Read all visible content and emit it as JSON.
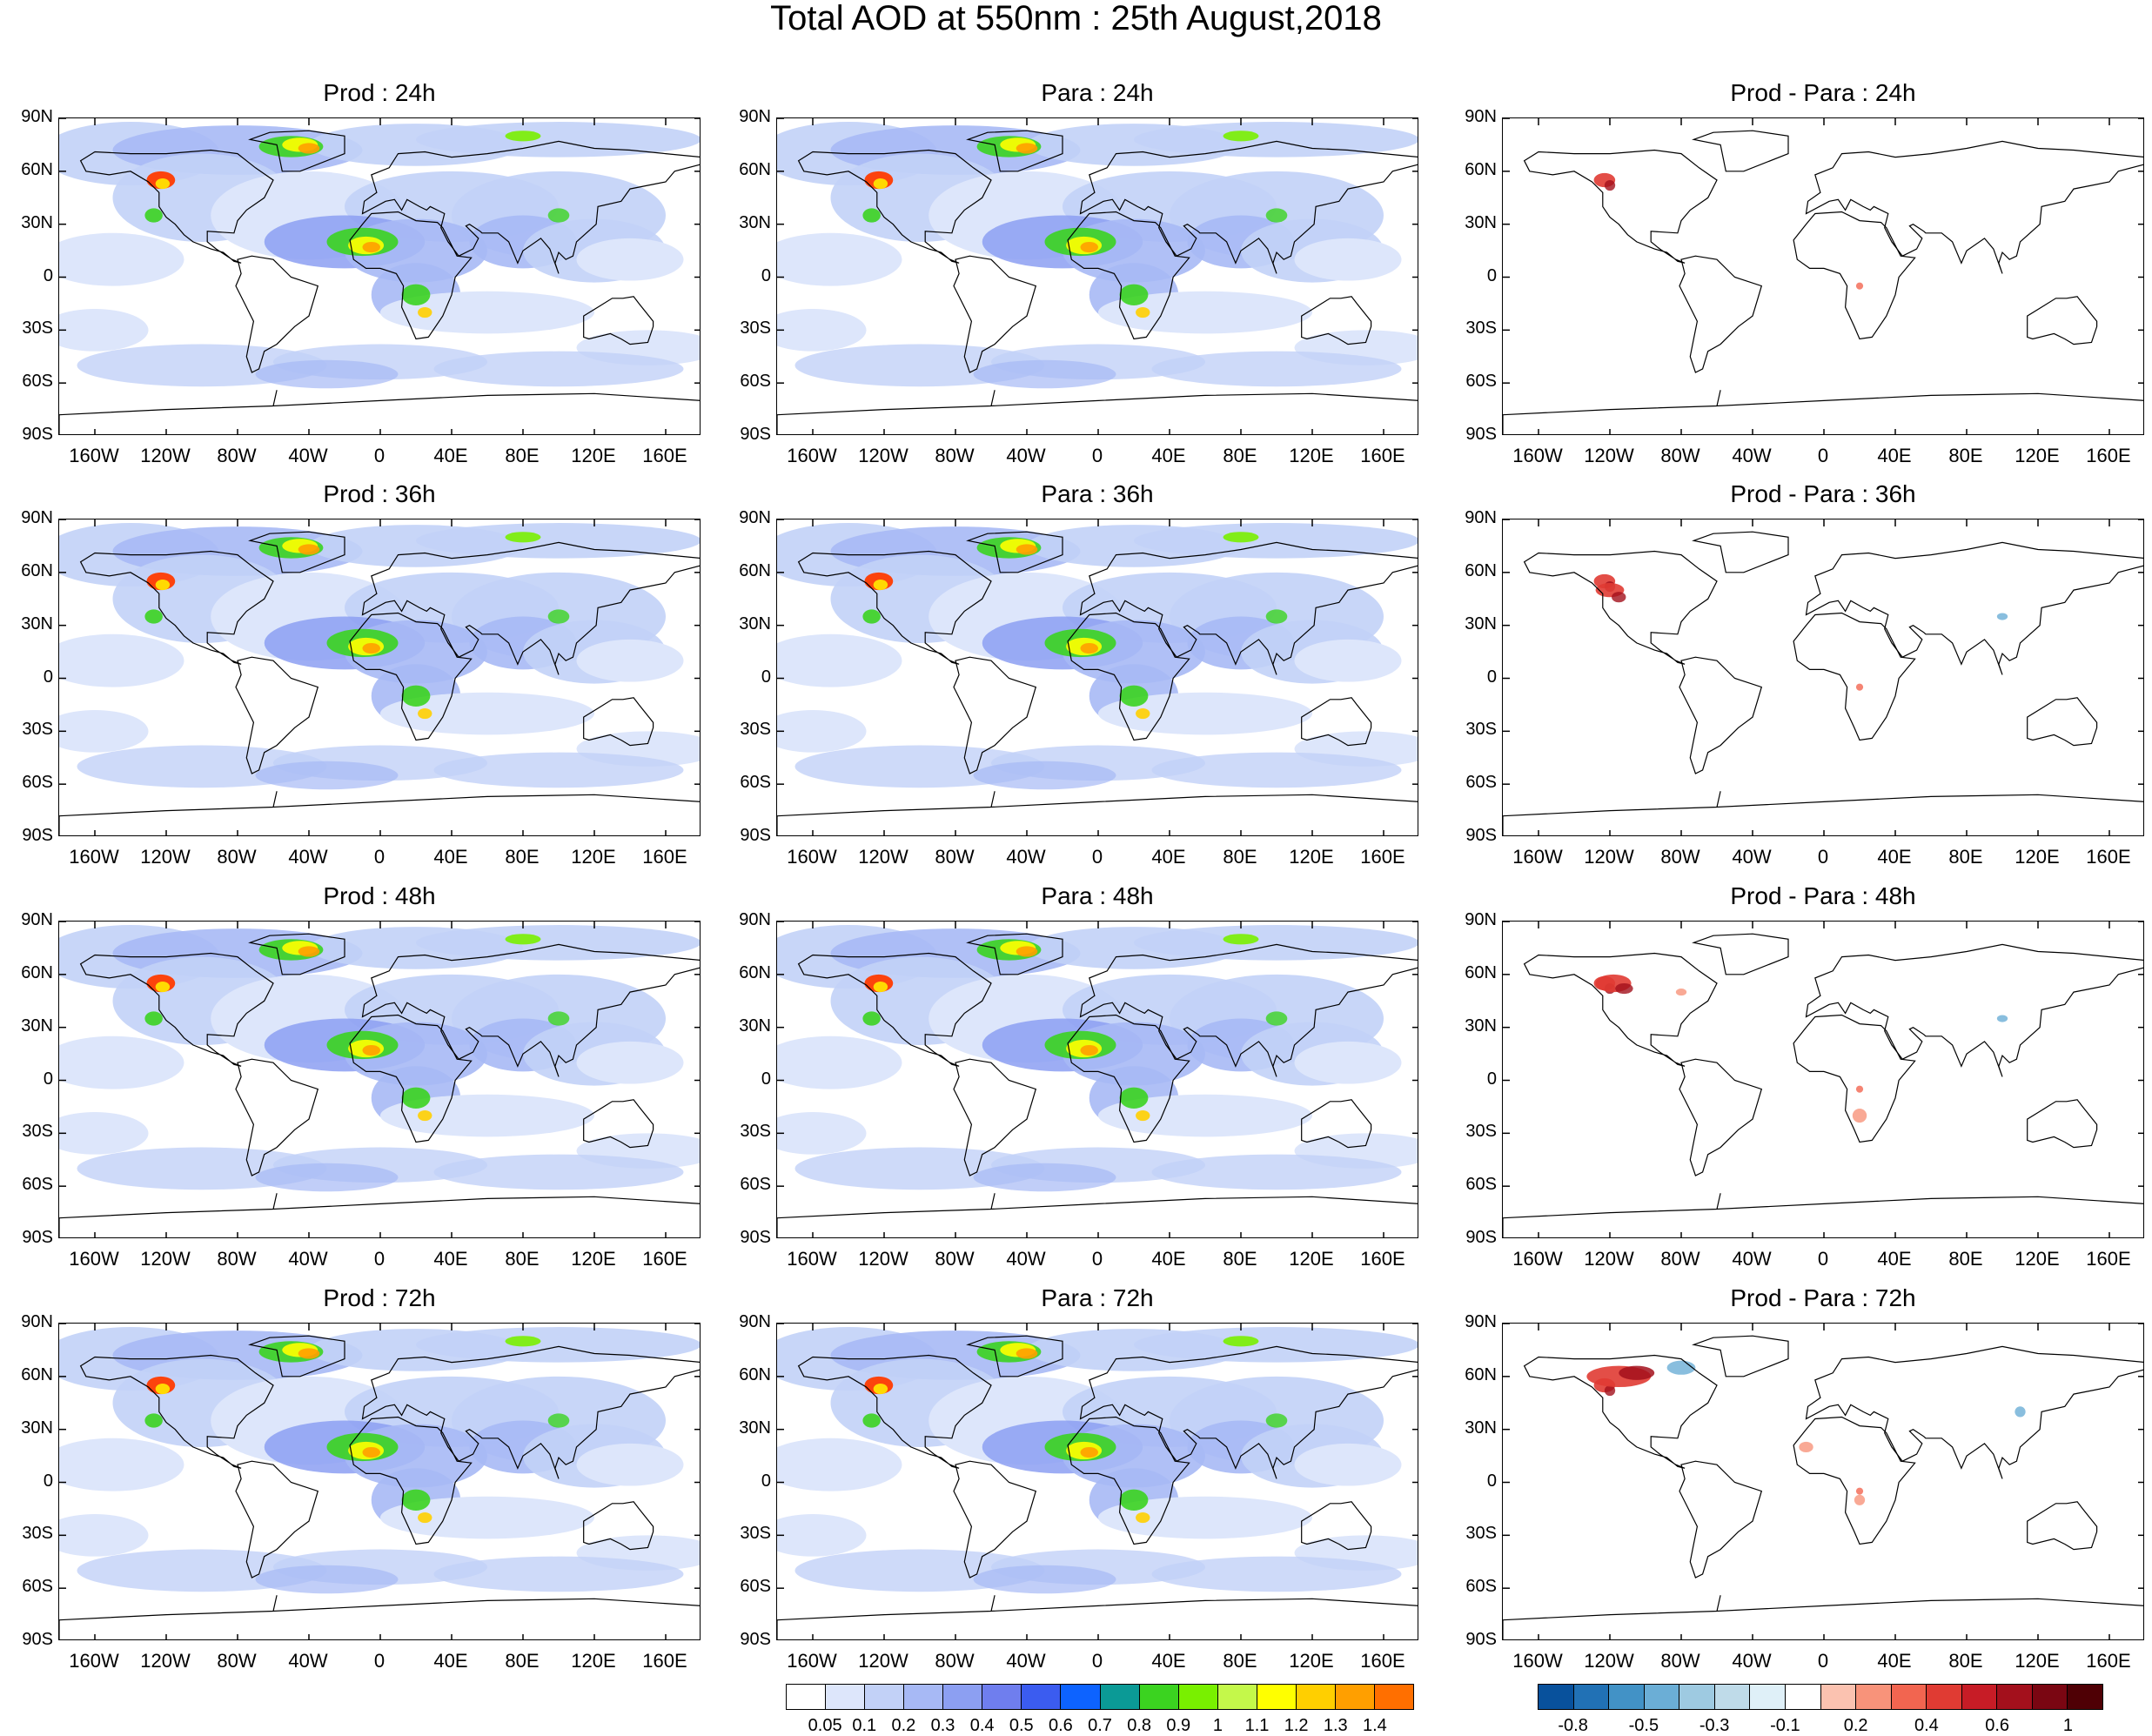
{
  "title": "Total AOD at 550nm : 25th August,2018",
  "panels": [
    {
      "title": "Prod : 24h",
      "kind": "aod"
    },
    {
      "title": "Para : 24h",
      "kind": "aod"
    },
    {
      "title": "Prod - Para : 24h",
      "kind": "diff"
    },
    {
      "title": "Prod : 36h",
      "kind": "aod"
    },
    {
      "title": "Para : 36h",
      "kind": "aod"
    },
    {
      "title": "Prod - Para : 36h",
      "kind": "diff"
    },
    {
      "title": "Prod : 48h",
      "kind": "aod"
    },
    {
      "title": "Para : 48h",
      "kind": "aod"
    },
    {
      "title": "Prod - Para : 48h",
      "kind": "diff"
    },
    {
      "title": "Prod : 72h",
      "kind": "aod"
    },
    {
      "title": "Para : 72h",
      "kind": "aod"
    },
    {
      "title": "Prod - Para : 72h",
      "kind": "diff"
    }
  ],
  "lat_labels": [
    "90N",
    "60N",
    "30N",
    "0",
    "30S",
    "60S",
    "90S"
  ],
  "lon_labels": [
    "160W",
    "120W",
    "80W",
    "40W",
    "0",
    "40E",
    "80E",
    "120E",
    "160E"
  ],
  "aod_colorbar": {
    "labels": [
      "0.05",
      "0.1",
      "0.2",
      "0.3",
      "0.4",
      "0.5",
      "0.6",
      "0.7",
      "0.8",
      "0.9",
      "1",
      "1.1",
      "1.2",
      "1.3",
      "1.4"
    ],
    "colors": [
      "#ffffff",
      "#dde6fb",
      "#c2d1f7",
      "#a7b9f5",
      "#8c9ff2",
      "#6f7eee",
      "#3b5cf0",
      "#0d63ff",
      "#0b9a96",
      "#3bd320",
      "#79f000",
      "#c4f84a",
      "#ffff00",
      "#ffcf00",
      "#ff9f00",
      "#ff6f00"
    ]
  },
  "diff_colorbar": {
    "labels": [
      "-0.8",
      "-0.5",
      "-0.3",
      "-0.1",
      "0.2",
      "0.4",
      "0.6",
      "1"
    ],
    "colors": [
      "#08519c",
      "#2171b5",
      "#4292c6",
      "#6baed6",
      "#9ecae1",
      "#bfdbe9",
      "#dff0f8",
      "#ffffff",
      "#fbc2b0",
      "#f8937a",
      "#f26550",
      "#e03b33",
      "#c71c26",
      "#a3101c",
      "#7a0612",
      "#4f0005"
    ]
  },
  "chart_data": {
    "type": "heatmap",
    "title": "Total AOD at 550nm : 25th August,2018",
    "panels": [
      {
        "title": "Prod : 24h",
        "field": "AOD"
      },
      {
        "title": "Para : 24h",
        "field": "AOD"
      },
      {
        "title": "Prod - Para : 24h",
        "field": "difference"
      },
      {
        "title": "Prod : 36h",
        "field": "AOD"
      },
      {
        "title": "Para : 36h",
        "field": "AOD"
      },
      {
        "title": "Prod - Para : 36h",
        "field": "difference"
      },
      {
        "title": "Prod : 48h",
        "field": "AOD"
      },
      {
        "title": "Para : 48h",
        "field": "AOD"
      },
      {
        "title": "Prod - Para : 48h",
        "field": "difference"
      },
      {
        "title": "Prod : 72h",
        "field": "AOD"
      },
      {
        "title": "Para : 72h",
        "field": "AOD"
      },
      {
        "title": "Prod - Para : 72h",
        "field": "difference"
      }
    ],
    "aod_levels": [
      0.05,
      0.1,
      0.2,
      0.3,
      0.4,
      0.5,
      0.6,
      0.7,
      0.8,
      0.9,
      1,
      1.1,
      1.2,
      1.3,
      1.4
    ],
    "diff_levels": [
      -0.8,
      -0.5,
      -0.3,
      -0.1,
      0.2,
      0.4,
      0.6,
      1
    ],
    "lon_range": [
      -180,
      180
    ],
    "lat_range": [
      -90,
      90
    ]
  }
}
